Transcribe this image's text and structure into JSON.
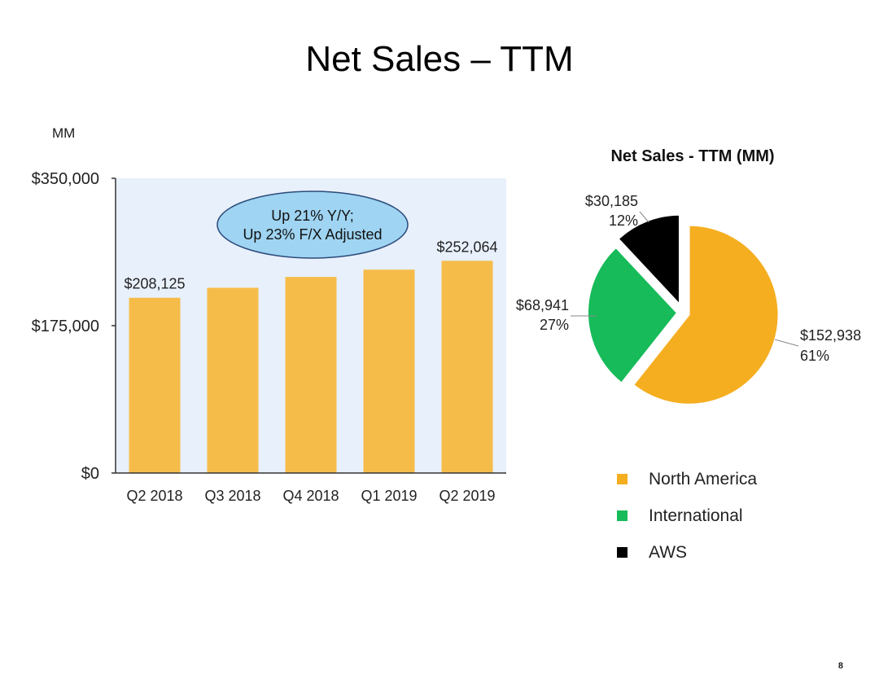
{
  "slide": {
    "title": "Net Sales – TTM",
    "units": "MM",
    "page_number": "8"
  },
  "colors": {
    "bar": "#f6bc4a",
    "plot_bg": "#e8f0fc",
    "callout_fill": "#9fd4f2",
    "callout_stroke": "#2b4a7a",
    "north_america": "#f5ae20",
    "international": "#17bb5a",
    "aws": "#000000"
  },
  "chart_data": [
    {
      "type": "bar",
      "title": "",
      "xlabel": "",
      "ylabel": "",
      "categories": [
        "Q2 2018",
        "Q3 2018",
        "Q4 2018",
        "Q1 2019",
        "Q2 2019"
      ],
      "values": [
        208125,
        220000,
        232900,
        241500,
        252064
      ],
      "ylim": [
        0,
        350000
      ],
      "yticks": [
        "$0",
        "$175,000",
        "$350,000"
      ],
      "ytick_values": [
        0,
        175000,
        350000
      ],
      "data_labels": [
        "$208,125",
        "",
        "",
        "",
        "$252,064"
      ],
      "grid": false,
      "annotation": {
        "line1": "Up 21% Y/Y;",
        "line2": "Up 23% F/X Adjusted"
      }
    },
    {
      "type": "pie",
      "title": "Net Sales - TTM (MM)",
      "slices": [
        {
          "name": "North America",
          "value": 152938,
          "label": "$152,938",
          "percent": "61%"
        },
        {
          "name": "International",
          "value": 68941,
          "label": "$68,941",
          "percent": "27%"
        },
        {
          "name": "AWS",
          "value": 30185,
          "label": "$30,185",
          "percent": "12%"
        }
      ],
      "legend": [
        "North America",
        "International",
        "AWS"
      ],
      "legend_position": "bottom"
    }
  ]
}
